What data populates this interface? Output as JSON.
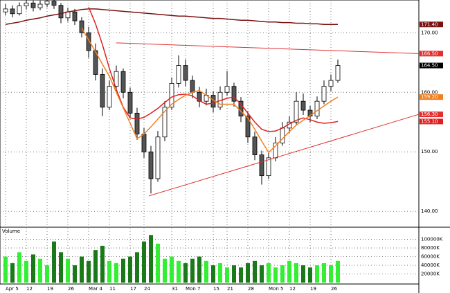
{
  "chart_data": {
    "type": "candlestick",
    "categories": [
      "Apr 5",
      null,
      null,
      "12",
      null,
      null,
      "19",
      null,
      null,
      "26",
      null,
      null,
      "Mar 4",
      null,
      null,
      "11",
      null,
      null,
      "17",
      null,
      "24",
      null,
      null,
      null,
      "31",
      null,
      "Mon 7",
      null,
      null,
      null,
      "15",
      null,
      "21",
      null,
      null,
      "28",
      null,
      null,
      "Mon 5",
      null,
      null,
      "12",
      null,
      null,
      "19",
      null,
      null,
      "26",
      null
    ],
    "candles": [
      [
        173.5,
        174.8,
        172.9,
        174.0
      ],
      [
        174.0,
        174.6,
        172.6,
        173.2
      ],
      [
        173.2,
        175.1,
        172.9,
        174.5
      ],
      [
        174.5,
        175.6,
        173.9,
        175.0
      ],
      [
        175.0,
        175.4,
        173.6,
        174.2
      ],
      [
        174.2,
        175.4,
        173.8,
        174.8
      ],
      [
        174.8,
        175.9,
        174.3,
        175.3
      ],
      [
        175.3,
        175.7,
        174.0,
        174.6
      ],
      [
        174.6,
        175.0,
        171.6,
        172.5
      ],
      [
        172.5,
        174.2,
        171.9,
        173.5
      ],
      [
        173.5,
        174.0,
        171.3,
        172.0
      ],
      [
        172.0,
        172.6,
        169.2,
        170.0
      ],
      [
        170.0,
        171.0,
        165.8,
        167.0
      ],
      [
        167.0,
        168.2,
        162.0,
        163.0
      ],
      [
        163.0,
        164.0,
        156.0,
        157.5
      ],
      [
        157.5,
        162.0,
        157.0,
        161.0
      ],
      [
        161.0,
        164.5,
        160.2,
        163.5
      ],
      [
        163.5,
        164.0,
        159.0,
        160.0
      ],
      [
        160.0,
        160.8,
        155.6,
        156.5
      ],
      [
        156.5,
        157.4,
        152.0,
        153.0
      ],
      [
        153.0,
        154.0,
        149.0,
        150.0
      ],
      [
        150.0,
        151.0,
        143.0,
        145.5
      ],
      [
        145.5,
        153.5,
        145.0,
        152.5
      ],
      [
        152.5,
        158.5,
        151.8,
        157.5
      ],
      [
        157.5,
        162.5,
        157.0,
        161.5
      ],
      [
        161.5,
        166.2,
        160.8,
        164.5
      ],
      [
        164.5,
        165.5,
        161.0,
        162.0
      ],
      [
        162.0,
        162.8,
        159.0,
        160.0
      ],
      [
        160.0,
        160.9,
        157.5,
        158.5
      ],
      [
        158.5,
        160.6,
        157.8,
        159.5
      ],
      [
        159.5,
        160.2,
        156.6,
        157.5
      ],
      [
        157.5,
        161.0,
        157.0,
        160.0
      ],
      [
        160.0,
        163.6,
        159.4,
        161.0
      ],
      [
        161.0,
        161.6,
        157.6,
        158.5
      ],
      [
        158.5,
        159.2,
        155.0,
        156.0
      ],
      [
        156.0,
        156.8,
        151.5,
        152.5
      ],
      [
        152.5,
        153.4,
        148.6,
        149.5
      ],
      [
        149.5,
        150.2,
        144.5,
        146.0
      ],
      [
        146.0,
        150.0,
        145.4,
        149.0
      ],
      [
        149.0,
        152.5,
        148.4,
        151.5
      ],
      [
        151.5,
        155.0,
        151.0,
        154.0
      ],
      [
        154.0,
        156.0,
        153.2,
        155.0
      ],
      [
        155.0,
        160.0,
        154.6,
        158.5
      ],
      [
        158.5,
        159.8,
        156.2,
        157.0
      ],
      [
        157.0,
        157.7,
        155.0,
        156.0
      ],
      [
        156.0,
        159.3,
        155.5,
        158.5
      ],
      [
        158.5,
        162.0,
        158.0,
        161.0
      ],
      [
        161.0,
        163.0,
        160.2,
        162.0
      ],
      [
        162.0,
        165.5,
        161.6,
        164.5
      ]
    ],
    "last_label": "164.50",
    "up_color": "#ffffff",
    "down_color": "#555555",
    "series": [
      {
        "color": "#7a1010",
        "last_label": "171.40",
        "values": [
          171.4,
          171.6,
          171.8,
          172.1,
          172.3,
          172.5,
          172.8,
          173.0,
          173.2,
          173.5,
          173.7,
          173.9,
          174.0,
          174.0,
          173.9,
          173.8,
          173.7,
          173.6,
          173.5,
          173.4,
          173.3,
          173.2,
          173.1,
          173.0,
          172.9,
          172.8,
          172.8,
          172.7,
          172.6,
          172.5,
          172.4,
          172.4,
          172.3,
          172.2,
          172.1,
          172.1,
          172.0,
          171.9,
          171.8,
          171.8,
          171.7,
          171.7,
          171.6,
          171.6,
          171.5,
          171.5,
          171.4,
          171.4,
          171.4
        ]
      },
      {
        "color": "#e02020",
        "last_label": "155.10",
        "values": [
          null,
          null,
          null,
          null,
          null,
          null,
          null,
          null,
          null,
          null,
          null,
          null,
          174.3,
          171.5,
          168.0,
          164.0,
          160.5,
          157.5,
          155.7,
          155.5,
          155.8,
          156.5,
          157.3,
          158.3,
          159.2,
          159.6,
          159.7,
          159.4,
          158.6,
          158.0,
          158.2,
          158.6,
          159.0,
          159.2,
          158.0,
          156.5,
          155.0,
          153.8,
          153.4,
          153.5,
          154.0,
          154.7,
          155.3,
          155.7,
          155.4,
          155.0,
          154.8,
          154.9,
          155.1
        ]
      },
      {
        "color": "#f08020",
        "last_label": "159.20",
        "values": [
          null,
          null,
          null,
          null,
          null,
          null,
          null,
          null,
          null,
          null,
          null,
          170.8,
          168.8,
          166.8,
          164.7,
          162.7,
          160.0,
          157.4,
          154.8,
          152.2,
          153.0,
          154.2,
          155.5,
          156.8,
          158.0,
          158.8,
          159.5,
          160.0,
          160.3,
          159.5,
          158.7,
          158.0,
          158.0,
          158.0,
          156.8,
          155.7,
          153.8,
          151.8,
          149.9,
          151.0,
          152.2,
          153.4,
          154.5,
          155.3,
          156.1,
          156.9,
          157.7,
          158.5,
          159.2
        ]
      }
    ],
    "trendlines": [
      {
        "color": "#e03030",
        "x": [
          16,
          59.7
        ],
        "y": [
          168.3,
          166.5
        ],
        "last_label": "166.50"
      },
      {
        "color": "#e03030",
        "x": [
          20.7,
          59.7
        ],
        "y": [
          142.6,
          156.3
        ],
        "last_label": "156.30"
      }
    ],
    "ylim": [
      137.7,
      175.5
    ],
    "yticks": [
      {
        "value": 140,
        "label": "140.00"
      },
      {
        "value": 150,
        "label": "150.00"
      },
      {
        "value": 160,
        "label": "160.00"
      },
      {
        "value": 170,
        "label": "170.00"
      }
    ],
    "volume_title": "Volume",
    "volume": [
      60000,
      45000,
      70000,
      50000,
      65000,
      55000,
      40000,
      95000,
      70000,
      55000,
      40000,
      60000,
      50000,
      75000,
      85000,
      50000,
      45000,
      55000,
      60000,
      70000,
      95000,
      110000,
      90000,
      55000,
      60000,
      50000,
      45000,
      55000,
      60000,
      50000,
      40000,
      45000,
      35000,
      40000,
      35000,
      45000,
      50000,
      40000,
      45000,
      35000,
      40000,
      50000,
      45000,
      40000,
      35000,
      40000,
      45000,
      40000,
      50000
    ],
    "volume_up_color": "#33ee33",
    "volume_down_color": "#1a7a1a",
    "vlim": [
      0,
      120000
    ],
    "vticks": [
      {
        "value": 20000,
        "label": "20000K"
      },
      {
        "value": 40000,
        "label": "40000K"
      },
      {
        "value": 60000,
        "label": "60000K"
      },
      {
        "value": 80000,
        "label": "80000K"
      },
      {
        "value": 100000,
        "label": "100000K"
      }
    ],
    "grid": true
  }
}
